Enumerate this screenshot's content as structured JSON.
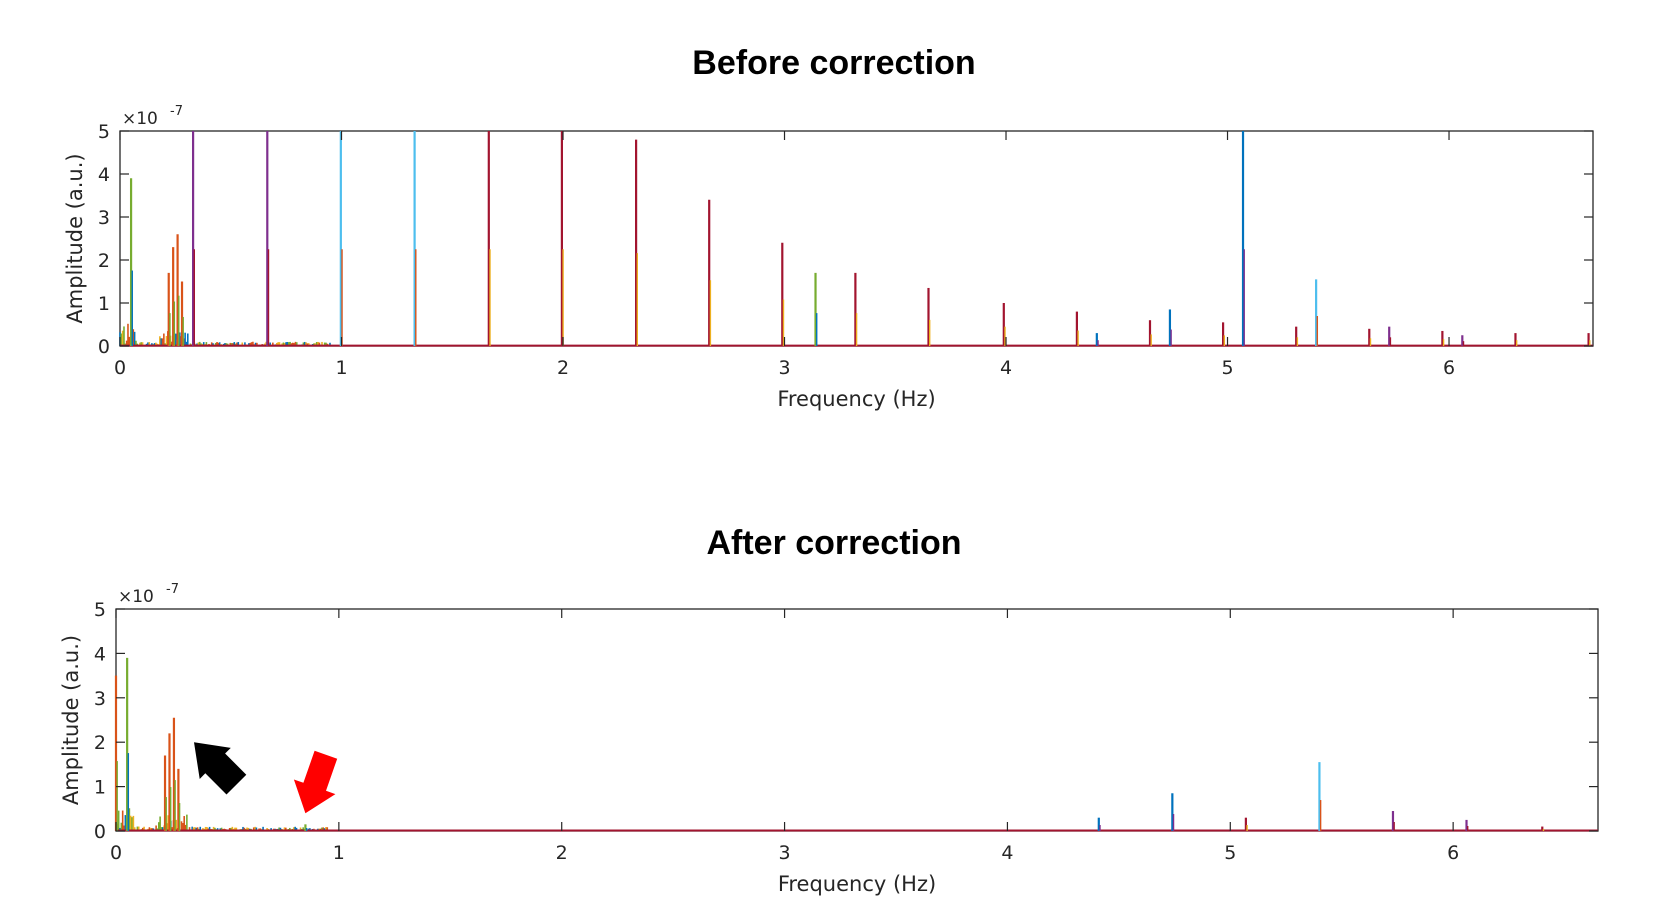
{
  "colors": {
    "series": [
      "#0072BD",
      "#D95319",
      "#EDB120",
      "#7E2F8E",
      "#77AC30",
      "#4DBEEE",
      "#A2142F"
    ],
    "arrow_black": "#000000",
    "arrow_red": "#FF0000",
    "axis": "#262626"
  },
  "chart_data": [
    {
      "type": "line",
      "title": "Before correction",
      "xlabel": "Frequency (Hz)",
      "ylabel": "Amplitude (a.u.)",
      "y_exponent_base": "×10",
      "y_exponent_power": "-7",
      "xlim": [
        0,
        6.65
      ],
      "ylim": [
        0,
        5
      ],
      "xticks": [
        "0",
        "1",
        "2",
        "3",
        "4",
        "5",
        "6"
      ],
      "yticks": [
        "0",
        "1",
        "2",
        "3",
        "4",
        "5"
      ],
      "lowfreq_noise": true,
      "peaks": [
        {
          "f": 0.05,
          "a": 3.9,
          "c": 4
        },
        {
          "f": 0.22,
          "a": 1.7,
          "c": 1
        },
        {
          "f": 0.24,
          "a": 2.3,
          "c": 1
        },
        {
          "f": 0.26,
          "a": 2.6,
          "c": 1
        },
        {
          "f": 0.28,
          "a": 1.5,
          "c": 1
        },
        {
          "f": 0.33,
          "a": 5.0,
          "c": 3
        },
        {
          "f": 0.665,
          "a": 5.0,
          "c": 3
        },
        {
          "f": 0.997,
          "a": 5.0,
          "c": 5
        },
        {
          "f": 1.33,
          "a": 5.0,
          "c": 5
        },
        {
          "f": 1.665,
          "a": 5.0,
          "c": 6
        },
        {
          "f": 1.995,
          "a": 5.0,
          "c": 6
        },
        {
          "f": 2.33,
          "a": 4.8,
          "c": 6
        },
        {
          "f": 2.66,
          "a": 3.4,
          "c": 6
        },
        {
          "f": 2.99,
          "a": 2.4,
          "c": 6
        },
        {
          "f": 3.14,
          "a": 1.7,
          "c": 4
        },
        {
          "f": 3.32,
          "a": 1.7,
          "c": 6
        },
        {
          "f": 3.65,
          "a": 1.35,
          "c": 6
        },
        {
          "f": 3.99,
          "a": 1.0,
          "c": 6
        },
        {
          "f": 4.32,
          "a": 0.8,
          "c": 6
        },
        {
          "f": 4.41,
          "a": 0.3,
          "c": 0
        },
        {
          "f": 4.65,
          "a": 0.6,
          "c": 6
        },
        {
          "f": 4.74,
          "a": 0.85,
          "c": 0
        },
        {
          "f": 4.98,
          "a": 0.55,
          "c": 6
        },
        {
          "f": 5.07,
          "a": 5.0,
          "c": 0
        },
        {
          "f": 5.31,
          "a": 0.45,
          "c": 6
        },
        {
          "f": 5.4,
          "a": 1.55,
          "c": 5
        },
        {
          "f": 5.64,
          "a": 0.4,
          "c": 6
        },
        {
          "f": 5.73,
          "a": 0.45,
          "c": 3
        },
        {
          "f": 5.97,
          "a": 0.35,
          "c": 6
        },
        {
          "f": 6.06,
          "a": 0.25,
          "c": 3
        },
        {
          "f": 6.3,
          "a": 0.3,
          "c": 6
        },
        {
          "f": 6.63,
          "a": 0.3,
          "c": 6
        }
      ]
    },
    {
      "type": "line",
      "title": "After correction",
      "xlabel": "Frequency (Hz)",
      "ylabel": "Amplitude (a.u.)",
      "y_exponent_base": "×10",
      "y_exponent_power": "-7",
      "xlim": [
        0,
        6.65
      ],
      "ylim": [
        0,
        5
      ],
      "xticks": [
        "0",
        "1",
        "2",
        "3",
        "4",
        "5",
        "6"
      ],
      "yticks": [
        "0",
        "1",
        "2",
        "3",
        "4",
        "5"
      ],
      "lowfreq_noise": true,
      "peaks": [
        {
          "f": 0.0,
          "a": 3.5,
          "c": 1
        },
        {
          "f": 0.05,
          "a": 3.9,
          "c": 4
        },
        {
          "f": 0.22,
          "a": 1.7,
          "c": 1
        },
        {
          "f": 0.24,
          "a": 2.2,
          "c": 1
        },
        {
          "f": 0.26,
          "a": 2.55,
          "c": 1
        },
        {
          "f": 0.28,
          "a": 1.4,
          "c": 1
        },
        {
          "f": 0.85,
          "a": 0.15,
          "c": 4
        },
        {
          "f": 4.41,
          "a": 0.3,
          "c": 0
        },
        {
          "f": 4.74,
          "a": 0.85,
          "c": 0
        },
        {
          "f": 5.07,
          "a": 0.3,
          "c": 6
        },
        {
          "f": 5.4,
          "a": 1.55,
          "c": 5
        },
        {
          "f": 5.73,
          "a": 0.45,
          "c": 3
        },
        {
          "f": 6.06,
          "a": 0.25,
          "c": 3
        },
        {
          "f": 6.4,
          "a": 0.1,
          "c": 6
        }
      ],
      "annotations": [
        {
          "type": "arrow",
          "color": "black",
          "points_to_f": 0.35,
          "points_to_a": 2.0
        },
        {
          "type": "arrow",
          "color": "red",
          "points_to_f": 0.85,
          "points_to_a": 0.4
        }
      ]
    }
  ]
}
